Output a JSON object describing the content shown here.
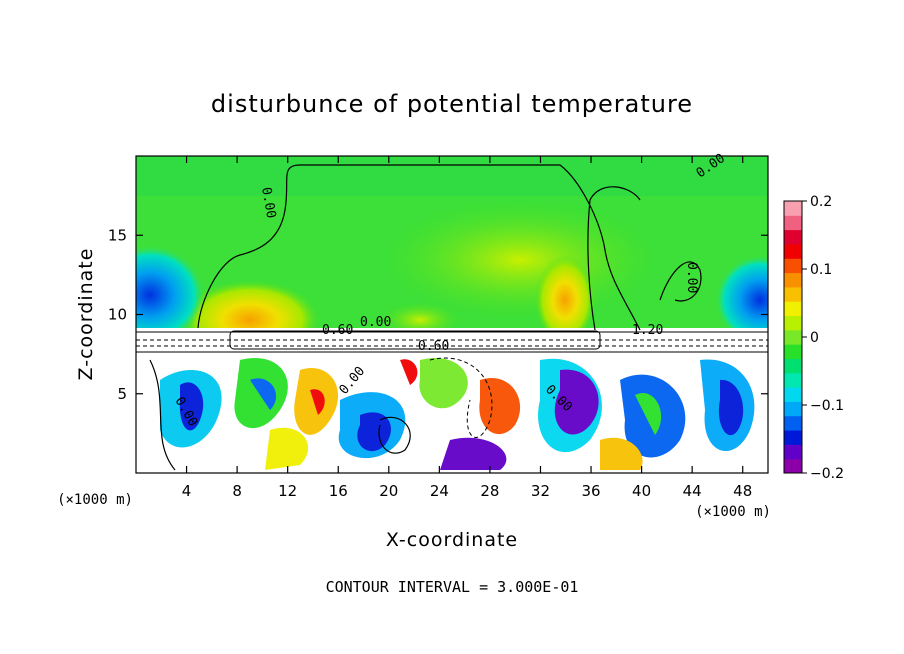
{
  "chart_data": {
    "type": "heatmap",
    "title": "disturbunce of potential temperature",
    "xlabel": "X-coordinate",
    "ylabel": "Z-coordinate",
    "x_unit": "(×1000 m)",
    "x_ticks": [
      4,
      8,
      12,
      16,
      20,
      24,
      28,
      32,
      36,
      40,
      44,
      48
    ],
    "y_ticks": [
      5,
      10,
      15
    ],
    "xlim": [
      0,
      50
    ],
    "ylim": [
      0,
      20
    ],
    "colorbar": {
      "ticks": [
        "0.2",
        "0.1",
        "0",
        "−0.1",
        "−0.2"
      ],
      "tick_values": [
        0.2,
        0.1,
        0,
        -0.1,
        -0.2
      ],
      "range": [
        -0.2,
        0.2
      ],
      "colors": [
        "#8b00a8",
        "#6000c8",
        "#0018d8",
        "#0060f0",
        "#00a8f8",
        "#00d8f0",
        "#00e8b0",
        "#00e070",
        "#28e028",
        "#78e828",
        "#b8f000",
        "#f0f000",
        "#f8c000",
        "#f89000",
        "#f85000",
        "#f00000",
        "#e00030",
        "#f06080",
        "#f8a0b0"
      ]
    },
    "contour_labels": [
      "0.00",
      "0.60",
      "0.60",
      "0.00",
      "1.20",
      "0.00",
      "0.00",
      "0.00",
      "0.00",
      "0.00"
    ],
    "footer": "CONTOUR INTERVAL = 3.000E-01"
  }
}
